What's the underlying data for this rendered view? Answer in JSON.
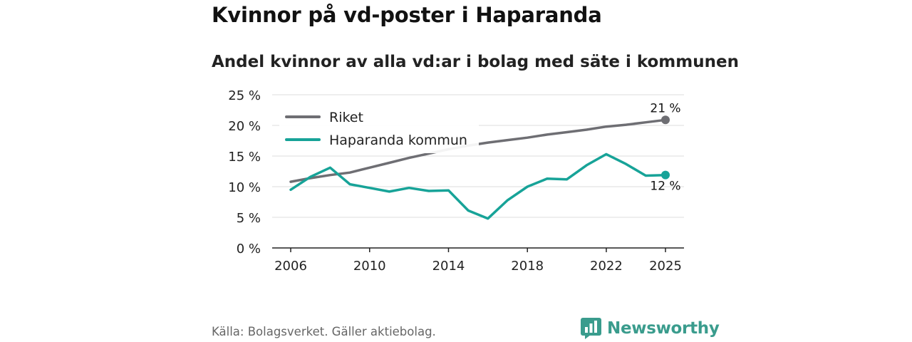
{
  "title": "Kvinnor på vd-poster i Haparanda",
  "subtitle": "Andel kvinnor av alla vd:ar i bolag med säte i kommunen",
  "source": "Källa: Bolagsverket. Gäller aktiebolag.",
  "brand": "Newsworthy",
  "colors": {
    "riket": "#6e6e73",
    "haparanda": "#17a398",
    "grid": "#dddddd",
    "brand": "#3a9c8d"
  },
  "chart_data": {
    "type": "line",
    "title": "Kvinnor på vd-poster i Haparanda",
    "subtitle": "Andel kvinnor av alla vd:ar i bolag med säte i kommunen",
    "xlabel": "",
    "ylabel": "",
    "x": [
      2006,
      2007,
      2008,
      2009,
      2010,
      2011,
      2012,
      2013,
      2014,
      2015,
      2016,
      2017,
      2018,
      2019,
      2020,
      2021,
      2022,
      2023,
      2024,
      2025
    ],
    "xticks": [
      2006,
      2010,
      2014,
      2018,
      2022,
      2025
    ],
    "ylim": [
      0,
      25
    ],
    "yticks": [
      0,
      5,
      10,
      15,
      20,
      25
    ],
    "ytick_labels": [
      "0 %",
      "5 %",
      "10 %",
      "15 %",
      "20 %",
      "25 %"
    ],
    "grid": true,
    "legend_position": "top-left",
    "series": [
      {
        "name": "Riket",
        "color": "#6e6e73",
        "values": [
          10.8,
          11.4,
          11.9,
          12.3,
          13.1,
          13.9,
          14.7,
          15.4,
          16.1,
          16.7,
          17.2,
          17.6,
          18.0,
          18.5,
          18.9,
          19.3,
          19.8,
          20.1,
          20.5,
          20.9
        ],
        "end_label": "21 %"
      },
      {
        "name": "Haparanda kommun",
        "color": "#17a398",
        "values": [
          9.5,
          11.6,
          13.1,
          10.4,
          9.8,
          9.2,
          9.8,
          9.3,
          9.4,
          6.1,
          4.8,
          7.8,
          10.0,
          11.3,
          11.2,
          13.5,
          15.3,
          13.7,
          11.8,
          11.9
        ],
        "end_label": "12 %"
      }
    ]
  }
}
